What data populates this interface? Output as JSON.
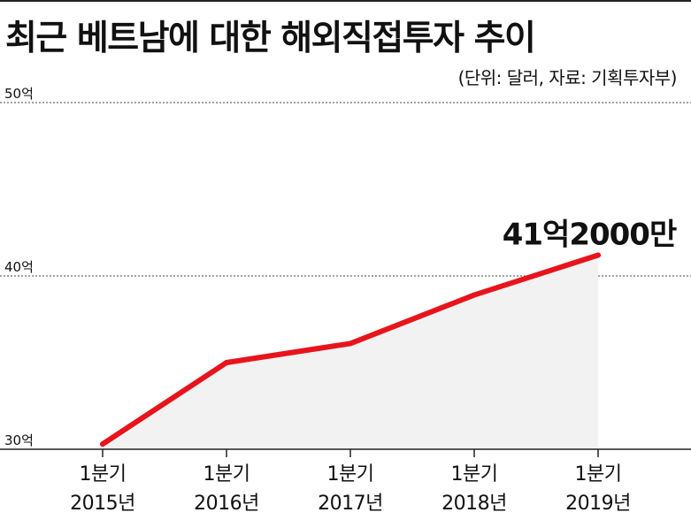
{
  "title": "최근 베트남에 대한 해외직접투자 추이",
  "subtitle": "(단위: 달러, 자료: 기획투자부)",
  "colors": {
    "line": "#e8141c",
    "area": "#f2f2f2",
    "grid": "#444444",
    "axis": "#222222"
  },
  "chart_data": {
    "type": "area",
    "categories": [
      [
        "1분기",
        "2015년"
      ],
      [
        "1분기",
        "2016년"
      ],
      [
        "1분기",
        "2017년"
      ],
      [
        "1분기",
        "2018년"
      ],
      [
        "1분기",
        "2019년"
      ]
    ],
    "values": [
      30.3,
      35.0,
      36.1,
      38.9,
      41.2
    ],
    "yticks": [
      {
        "value": 50,
        "label": "50억"
      },
      {
        "value": 40,
        "label": "40억"
      },
      {
        "value": 30,
        "label": "30억"
      }
    ],
    "ylim": [
      30,
      50
    ],
    "grid": true,
    "annotation": {
      "index": 4,
      "label": "41억2000만"
    }
  }
}
